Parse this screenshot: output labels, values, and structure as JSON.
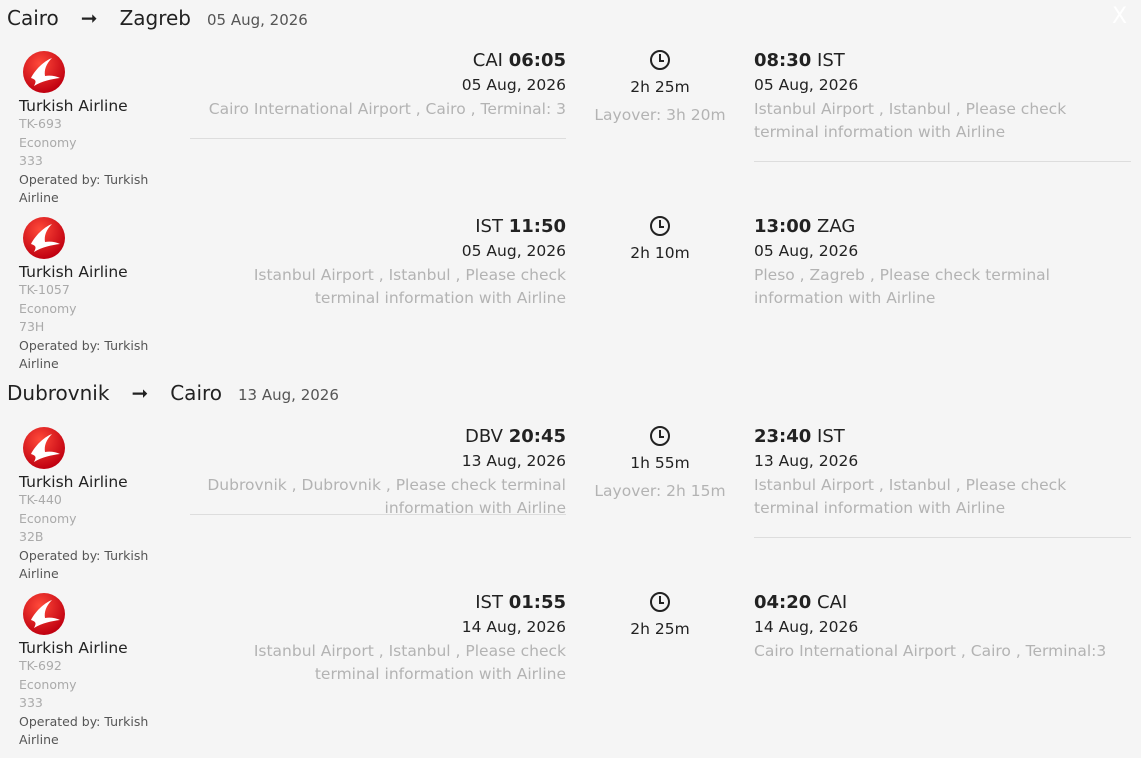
{
  "close_label": "X",
  "trips": [
    {
      "from": "Cairo",
      "to": "Zagreb",
      "arrow": "➞",
      "date": "05 Aug, 2026",
      "segments": [
        {
          "airline": "Turkish Airline",
          "flight": "TK-693",
          "cabin": "Economy",
          "aircraft": "333",
          "operated": "Operated by: Turkish Airline",
          "dep_code": "CAI",
          "dep_time": "06:05",
          "dep_date": "05 Aug, 2026",
          "dep_airport": "Cairo International Airport , Cairo , Terminal: 3",
          "duration": "2h 25m",
          "layover": "Layover: 3h 20m",
          "arr_time": "08:30",
          "arr_code": "IST",
          "arr_date": "05 Aug, 2026",
          "arr_airport": "Istanbul Airport , Istanbul , Please check terminal information with Airline"
        },
        {
          "airline": "Turkish Airline",
          "flight": "TK-1057",
          "cabin": "Economy",
          "aircraft": "73H",
          "operated": "Operated by: Turkish Airline",
          "dep_code": "IST",
          "dep_time": "11:50",
          "dep_date": "05 Aug, 2026",
          "dep_airport": "Istanbul Airport , Istanbul , Please check terminal information with Airline",
          "duration": "2h 10m",
          "arr_time": "13:00",
          "arr_code": "ZAG",
          "arr_date": "05 Aug, 2026",
          "arr_airport": "Pleso , Zagreb , Please check terminal information with Airline"
        }
      ]
    },
    {
      "from": "Dubrovnik",
      "to": "Cairo",
      "arrow": "➞",
      "date": "13 Aug, 2026",
      "segments": [
        {
          "airline": "Turkish Airline",
          "flight": "TK-440",
          "cabin": "Economy",
          "aircraft": "32B",
          "operated": "Operated by: Turkish Airline",
          "dep_code": "DBV",
          "dep_time": "20:45",
          "dep_date": "13 Aug, 2026",
          "dep_airport": "Dubrovnik , Dubrovnik , Please check terminal information with Airline",
          "duration": "1h 55m",
          "layover": "Layover: 2h 15m",
          "arr_time": "23:40",
          "arr_code": "IST",
          "arr_date": "13 Aug, 2026",
          "arr_airport": "Istanbul Airport , Istanbul , Please check terminal information with Airline"
        },
        {
          "airline": "Turkish Airline",
          "flight": "TK-692",
          "cabin": "Economy",
          "aircraft": "333",
          "operated": "Operated by: Turkish Airline",
          "dep_code": "IST",
          "dep_time": "01:55",
          "dep_date": "14 Aug, 2026",
          "dep_airport": "Istanbul Airport , Istanbul , Please check terminal information with Airline",
          "duration": "2h 25m",
          "arr_time": "04:20",
          "arr_code": "CAI",
          "arr_date": "14 Aug, 2026",
          "arr_airport": "Cairo International Airport , Cairo , Terminal:3"
        }
      ]
    }
  ],
  "colors": {
    "logo_red": "#e30a17",
    "muted": "#b3b3b3"
  }
}
